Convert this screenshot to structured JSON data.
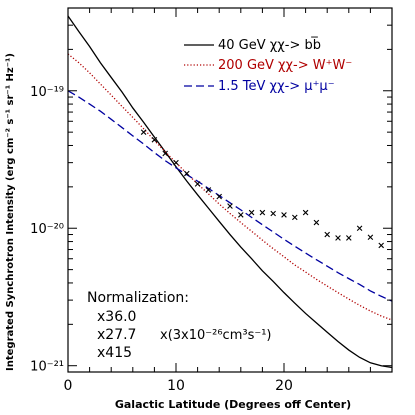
{
  "chart_data": {
    "type": "line",
    "xlabel": "Galactic Latitude (Degrees off Center)",
    "ylabel": "Integrated Synchrotron Intensity (erg cm⁻² s⁻¹ sr⁻¹ Hz⁻¹)",
    "xlim": [
      0,
      30
    ],
    "ylim": [
      9e-22,
      4e-19
    ],
    "yscale": "log",
    "x_ticks": [
      "0",
      "10",
      "20"
    ],
    "x_tick_values": [
      0,
      10,
      20
    ],
    "y_ticks": [
      "10⁻²¹",
      "10⁻²⁰",
      "10⁻¹⁹"
    ],
    "y_tick_values": [
      1e-21,
      1e-20,
      1e-19
    ],
    "legend_position": "top-right",
    "series": [
      {
        "name": "40 GeV χχ-> bb̅",
        "color": "#000000",
        "dash": "solid",
        "x": [
          0,
          1,
          2,
          3,
          4,
          5,
          6,
          7,
          8,
          9,
          10,
          11,
          12,
          13,
          14,
          15,
          16,
          17,
          18,
          19,
          20,
          21,
          22,
          23,
          24,
          25,
          26,
          27,
          28,
          29,
          30
        ],
        "y": [
          3.5e-19,
          2.7e-19,
          2.1e-19,
          1.6e-19,
          1.25e-19,
          9.8e-20,
          7.5e-20,
          5.9e-20,
          4.6e-20,
          3.6e-20,
          2.8e-20,
          2.2e-20,
          1.75e-20,
          1.4e-20,
          1.12e-20,
          9e-21,
          7.3e-21,
          6e-21,
          4.9e-21,
          4.1e-21,
          3.4e-21,
          2.85e-21,
          2.4e-21,
          2.05e-21,
          1.75e-21,
          1.5e-21,
          1.3e-21,
          1.15e-21,
          1.05e-21,
          1e-21,
          9.7e-22
        ]
      },
      {
        "name": "200 GeV χχ-> W⁺W⁻",
        "color": "#b00000",
        "dash": "dotted",
        "x": [
          0,
          1,
          2,
          3,
          4,
          5,
          6,
          7,
          8,
          9,
          10,
          11,
          12,
          13,
          14,
          15,
          16,
          17,
          18,
          19,
          20,
          21,
          22,
          23,
          24,
          25,
          26,
          27,
          28,
          29,
          30
        ],
        "y": [
          1.85e-19,
          1.6e-19,
          1.35e-19,
          1.12e-19,
          9.3e-20,
          7.7e-20,
          6.4e-20,
          5.3e-20,
          4.35e-20,
          3.6e-20,
          3e-20,
          2.5e-20,
          2.1e-20,
          1.78e-20,
          1.5e-20,
          1.28e-20,
          1.1e-20,
          9.5e-21,
          8.2e-21,
          7.1e-21,
          6.2e-21,
          5.4e-21,
          4.8e-21,
          4.25e-21,
          3.8e-21,
          3.4e-21,
          3.05e-21,
          2.75e-21,
          2.5e-21,
          2.3e-21,
          2.15e-21
        ]
      },
      {
        "name": "1.5 TeV χχ-> μ⁺μ⁻",
        "color": "#0000a0",
        "dash": "dashed",
        "x": [
          0,
          1,
          2,
          3,
          4,
          5,
          6,
          7,
          8,
          9,
          10,
          11,
          12,
          13,
          14,
          15,
          16,
          17,
          18,
          19,
          20,
          21,
          22,
          23,
          24,
          25,
          26,
          27,
          28,
          29,
          30
        ],
        "y": [
          1e-19,
          9e-20,
          8e-20,
          7.1e-20,
          6.2e-20,
          5.4e-20,
          4.7e-20,
          4.1e-20,
          3.55e-20,
          3.1e-20,
          2.75e-20,
          2.45e-20,
          2.2e-20,
          1.95e-20,
          1.73e-20,
          1.53e-20,
          1.36e-20,
          1.2e-20,
          1.06e-20,
          9.4e-21,
          8.3e-21,
          7.4e-21,
          6.6e-21,
          5.9e-21,
          5.3e-21,
          4.75e-21,
          4.3e-21,
          3.9e-21,
          3.5e-21,
          3.2e-21,
          2.95e-21
        ]
      }
    ],
    "data_points": {
      "marker": "x",
      "color": "#000000",
      "x": [
        7,
        8,
        9,
        10,
        11,
        12,
        13,
        14,
        15,
        16,
        17,
        18,
        19,
        20,
        21,
        22,
        23,
        24,
        25,
        26,
        27,
        28,
        29
      ],
      "y": [
        5e-20,
        4.4e-20,
        3.5e-20,
        3e-20,
        2.5e-20,
        2.1e-20,
        1.9e-20,
        1.7e-20,
        1.45e-20,
        1.25e-20,
        1.3e-20,
        1.3e-20,
        1.28e-20,
        1.25e-20,
        1.2e-20,
        1.3e-20,
        1.1e-20,
        9e-21,
        8.5e-21,
        8.5e-21,
        1e-20,
        8.6e-21,
        7.5e-21
      ]
    },
    "annotations": {
      "normalization_title": "Normalization:",
      "factors": [
        {
          "text": "x36.0",
          "color": "#000000"
        },
        {
          "text": "x27.7",
          "color": "#b00000"
        },
        {
          "text": "x415",
          "color": "#0000a0"
        }
      ],
      "units_text": "x(3x10⁻²⁶cm³s⁻¹)"
    }
  }
}
